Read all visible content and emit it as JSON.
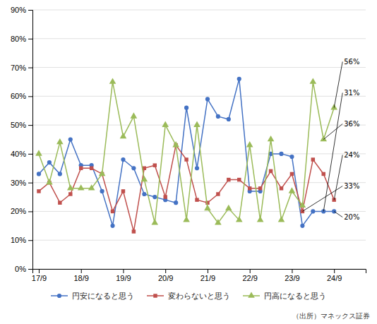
{
  "chart_data": {
    "type": "line",
    "x": [
      0,
      0.5,
      1,
      1.5,
      2,
      2.5,
      3,
      3.5,
      4,
      4.5,
      5,
      5.5,
      6,
      6.5,
      7,
      7.5,
      8,
      8.5,
      9,
      9.5,
      10,
      10.5,
      11,
      11.5,
      12,
      12.5,
      13,
      13.5,
      14
    ],
    "xlim": [
      -0.3,
      15.5
    ],
    "xticks": [
      {
        "value": 0,
        "label": "17/9"
      },
      {
        "value": 2,
        "label": "18/9"
      },
      {
        "value": 4,
        "label": "19/9"
      },
      {
        "value": 6,
        "label": "20/9"
      },
      {
        "value": 8,
        "label": "21/9"
      },
      {
        "value": 10,
        "label": "22/9"
      },
      {
        "value": 12,
        "label": "23/9"
      },
      {
        "value": 14,
        "label": "24/9"
      }
    ],
    "ylim": [
      0,
      90
    ],
    "yticks": [
      {
        "value": 0,
        "label": "0%"
      },
      {
        "value": 10,
        "label": "10%"
      },
      {
        "value": 20,
        "label": "20%"
      },
      {
        "value": 30,
        "label": "30%"
      },
      {
        "value": 40,
        "label": "40%"
      },
      {
        "value": 50,
        "label": "50%"
      },
      {
        "value": 60,
        "label": "60%"
      },
      {
        "value": 70,
        "label": "70%"
      },
      {
        "value": 80,
        "label": "80%"
      },
      {
        "value": 90,
        "label": "90%"
      }
    ],
    "grid": true,
    "legend": "bottom",
    "series": [
      {
        "name": "円安になると思う",
        "color": "#4472C4",
        "marker": "circle",
        "values": [
          33,
          37,
          33,
          45,
          36,
          36,
          27,
          15,
          38,
          35,
          26,
          25,
          24,
          23,
          56,
          35,
          59,
          53,
          52,
          66,
          27,
          27,
          40,
          40,
          39,
          15,
          20,
          20,
          20
        ]
      },
      {
        "name": "変わらないと思う",
        "color": "#C0504D",
        "marker": "square",
        "values": [
          27,
          30,
          23,
          26,
          35,
          35,
          33,
          20,
          27,
          13,
          35,
          36,
          25,
          43,
          38,
          24,
          23,
          26,
          31,
          31,
          28,
          28,
          34,
          28,
          33,
          20,
          38,
          33,
          24
        ]
      },
      {
        "name": "円高になると思う",
        "color": "#9BBB59",
        "marker": "triangle",
        "values": [
          40,
          30,
          44,
          28,
          28,
          28,
          33,
          65,
          46,
          53,
          31,
          16,
          50,
          43,
          17,
          50,
          21,
          16,
          21,
          17,
          43,
          17,
          45,
          17,
          27,
          22,
          65,
          45,
          56
        ]
      }
    ],
    "annotations": [
      {
        "text": "56%",
        "x": 14,
        "y": 56
      },
      {
        "text": "31%",
        "x": 13.5,
        "y": 20
      },
      {
        "text": "36%",
        "x": 13.5,
        "y": 45
      },
      {
        "text": "24%",
        "x": 14,
        "y": 24
      },
      {
        "text": "33%",
        "x": 12.5,
        "y": 20
      },
      {
        "text": "20%",
        "x": 14,
        "y": 20
      }
    ],
    "source": "（出所）マネックス証券"
  }
}
